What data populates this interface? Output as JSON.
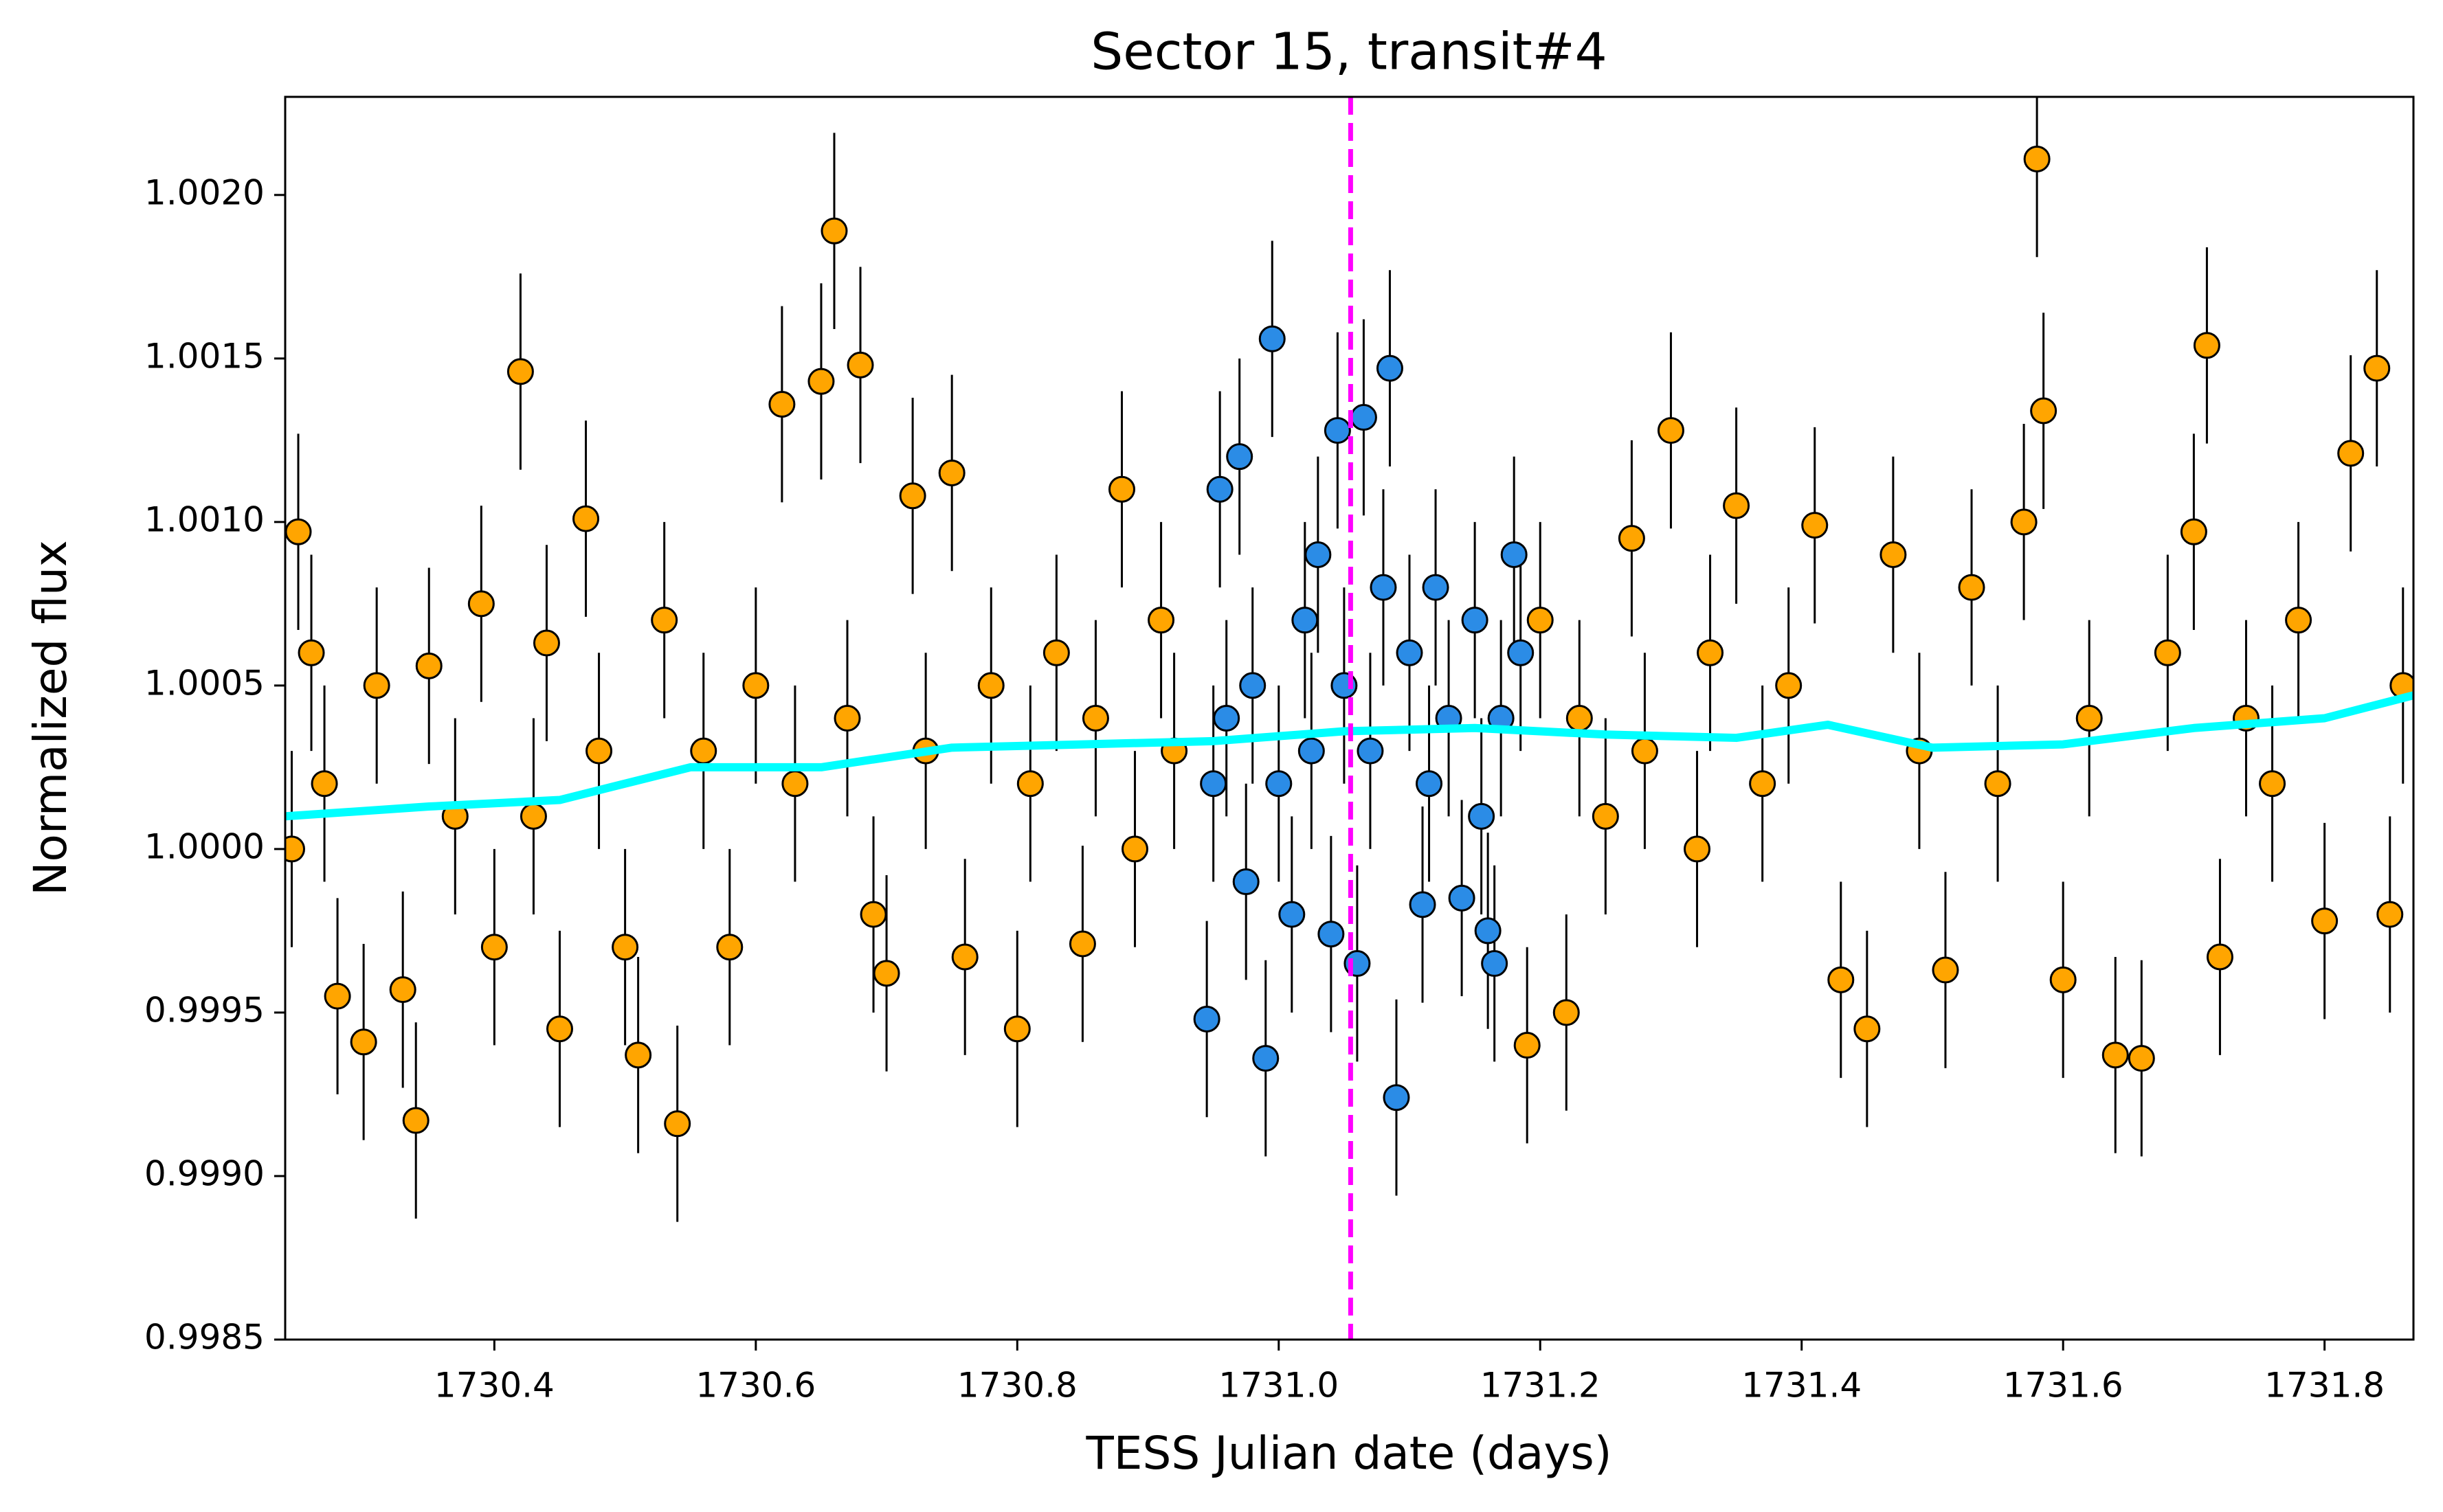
{
  "chart_data": {
    "type": "scatter",
    "title": "Sector 15, transit#4",
    "xlabel": "TESS Julian date (days)",
    "ylabel": "Normalized flux",
    "xlim": [
      1730.24,
      1731.868
    ],
    "ylim": [
      0.9985,
      1.0023
    ],
    "xticks": [
      1730.4,
      1730.6,
      1730.8,
      {
        "value": 1731,
        "label": "1731.0"
      },
      1731.2,
      1731.4,
      1731.6,
      1731.8
    ],
    "yticks": [
      0.9985,
      {
        "value": 0.999,
        "label": "0.9990"
      },
      0.9995,
      {
        "value": 1,
        "label": "1.0000"
      },
      1.0005,
      {
        "value": 1.001,
        "label": "1.0010"
      },
      1.0015,
      {
        "value": 1.002,
        "label": "1.0020"
      }
    ],
    "series": [
      {
        "color": "#ffa500",
        "error": 0.0003,
        "x": [
          1730.245,
          1730.25,
          1730.26,
          1730.27,
          1730.28,
          1730.3,
          1730.31,
          1730.33,
          1730.34,
          1730.35,
          1730.37,
          1730.39,
          1730.4,
          1730.42,
          1730.43,
          1730.44,
          1730.45,
          1730.47,
          1730.48,
          1730.5,
          1730.51,
          1730.53,
          1730.54,
          1730.56,
          1730.58,
          1730.6,
          1730.62,
          1730.63,
          1730.65,
          1730.66,
          1730.67,
          1730.68,
          1730.69,
          1730.7,
          1730.72,
          1730.73,
          1730.75,
          1730.76,
          1730.78,
          1730.8,
          1730.81,
          1730.83,
          1730.85,
          1730.86,
          1730.88,
          1730.89,
          1730.91,
          1730.92,
          1731.19,
          1731.2,
          1731.22,
          1731.23,
          1731.25,
          1731.27,
          1731.28,
          1731.3,
          1731.32,
          1731.33,
          1731.35,
          1731.37,
          1731.39,
          1731.41,
          1731.43,
          1731.45,
          1731.47,
          1731.49,
          1731.51,
          1731.53,
          1731.55,
          1731.57,
          1731.58,
          1731.585,
          1731.6,
          1731.62,
          1731.64,
          1731.66,
          1731.68,
          1731.7,
          1731.71,
          1731.72,
          1731.74,
          1731.76,
          1731.78,
          1731.8,
          1731.82,
          1731.84,
          1731.85,
          1731.86
        ],
        "values": [
          1.0,
          1.00097,
          1.0006,
          1.0002,
          0.99955,
          0.99941,
          1.0005,
          0.99957,
          0.99917,
          1.00056,
          1.0001,
          1.00075,
          0.9997,
          1.00146,
          1.0001,
          1.00063,
          0.99945,
          1.00101,
          1.0003,
          0.9997,
          0.99937,
          1.0007,
          0.99916,
          1.0003,
          0.9997,
          1.0005,
          1.00136,
          1.0002,
          1.00143,
          1.00189,
          1.0004,
          1.00148,
          0.9998,
          0.99962,
          1.00108,
          1.0003,
          1.00115,
          0.99967,
          1.0005,
          0.99945,
          1.0002,
          1.0006,
          0.99971,
          1.0004,
          1.0011,
          1.0,
          1.0007,
          1.0003,
          0.9994,
          1.0007,
          0.9995,
          1.0004,
          1.0001,
          1.00095,
          1.0003,
          1.00128,
          1.0,
          1.0006,
          1.00105,
          1.0002,
          1.0005,
          1.00099,
          0.9996,
          0.99945,
          1.0009,
          1.0003,
          0.99963,
          1.0008,
          1.0002,
          1.001,
          1.00211,
          1.00134,
          0.9996,
          1.0004,
          0.99937,
          0.99936,
          1.0006,
          1.00097,
          1.00154,
          0.99967,
          1.0004,
          1.0002,
          1.0007,
          0.99978,
          1.00121,
          1.00147,
          0.9998,
          1.0005
        ]
      },
      {
        "color": "#2b8ce6",
        "error": 0.0003,
        "x": [
          1730.945,
          1730.95,
          1730.955,
          1730.96,
          1730.97,
          1730.975,
          1730.98,
          1730.99,
          1730.995,
          1731.0,
          1731.01,
          1731.02,
          1731.025,
          1731.03,
          1731.04,
          1731.045,
          1731.05,
          1731.06,
          1731.065,
          1731.07,
          1731.08,
          1731.085,
          1731.09,
          1731.1,
          1731.11,
          1731.115,
          1731.12,
          1731.13,
          1731.14,
          1731.15,
          1731.155,
          1731.16,
          1731.165,
          1731.17,
          1731.18,
          1731.185
        ],
        "values": [
          0.99948,
          1.0002,
          1.0011,
          1.0004,
          1.0012,
          0.9999,
          1.0005,
          0.99936,
          1.00156,
          1.0002,
          0.9998,
          1.0007,
          1.0003,
          1.0009,
          0.99974,
          1.00128,
          1.0005,
          0.99965,
          1.00132,
          1.0003,
          1.0008,
          1.00147,
          0.99924,
          1.0006,
          0.99983,
          1.0002,
          1.0008,
          1.0004,
          0.99985,
          1.0007,
          1.0001,
          0.99975,
          0.99965,
          1.0004,
          1.0009,
          1.0006
        ]
      }
    ],
    "trend": {
      "color": "#00ffff",
      "x": [
        1730.24,
        1730.35,
        1730.45,
        1730.55,
        1730.65,
        1730.75,
        1730.85,
        1730.95,
        1731.05,
        1731.15,
        1731.25,
        1731.35,
        1731.42,
        1731.5,
        1731.6,
        1731.7,
        1731.8,
        1731.868
      ],
      "values": [
        1.0001,
        1.00013,
        1.00015,
        1.00025,
        1.00025,
        1.00031,
        1.00032,
        1.00033,
        1.00036,
        1.00037,
        1.00035,
        1.00034,
        1.00038,
        1.00031,
        1.00032,
        1.00037,
        1.0004,
        1.00047
      ]
    },
    "vline": {
      "x": 1731.055,
      "color": "#ff00ff"
    }
  }
}
